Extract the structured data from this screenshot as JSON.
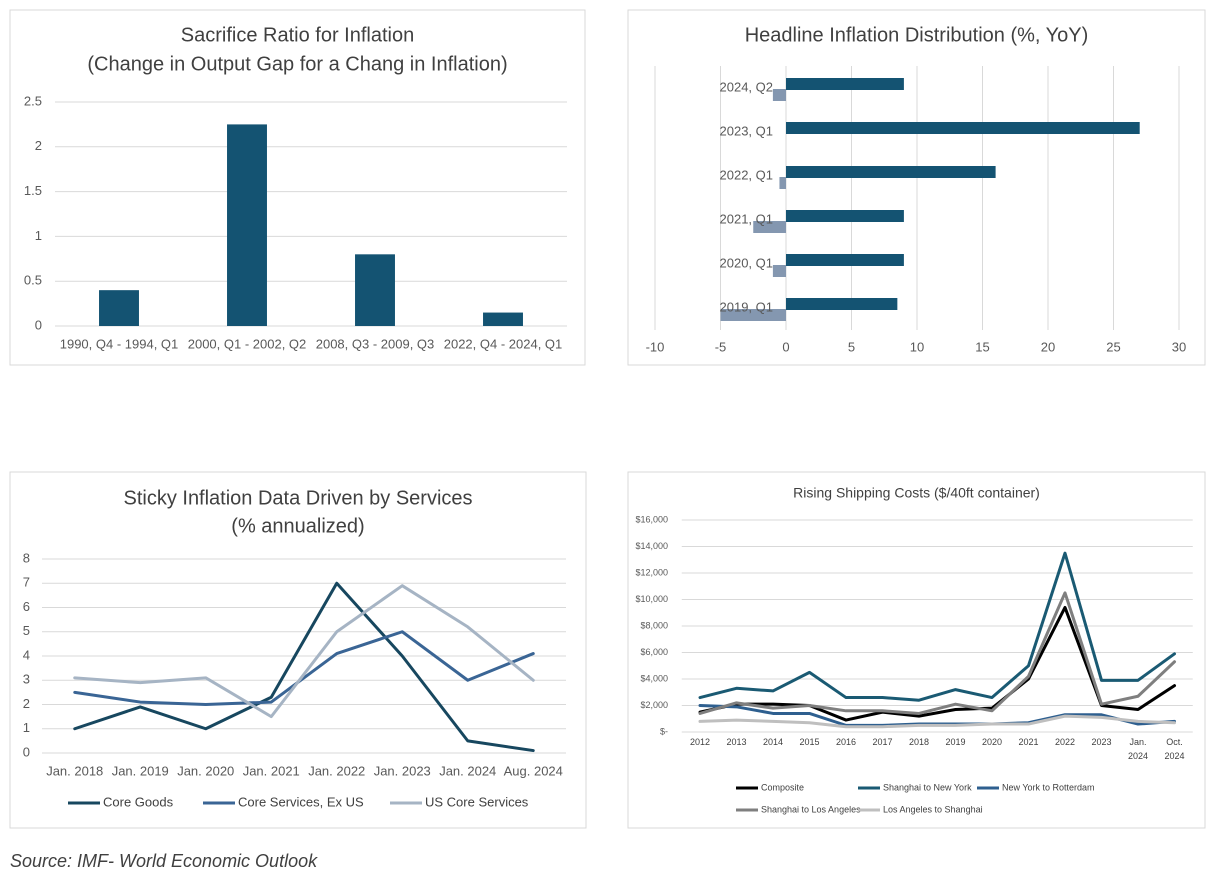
{
  "chart_data": [
    {
      "type": "bar",
      "orientation": "vertical",
      "title": "Sacrifice Ratio for Inflation",
      "subtitle": "(Change in Output Gap for a Chang in Inflation)",
      "categories": [
        "1990, Q4 - 1994, Q1",
        "2000, Q1 - 2002, Q2",
        "2008, Q3 - 2009, Q3",
        "2022, Q4 - 2024, Q1"
      ],
      "values": [
        0.4,
        2.25,
        0.8,
        0.15
      ],
      "color": "#145372",
      "ylim": [
        0,
        2.5
      ],
      "yticks": [
        0,
        0.5,
        1,
        1.5,
        2,
        2.5
      ],
      "grid": true
    },
    {
      "type": "bar",
      "orientation": "horizontal",
      "title": "Headline Inflation Distribution (%, YoY)",
      "categories": [
        "2024, Q2",
        "2023, Q1",
        "2022, Q1",
        "2021, Q1",
        "2020, Q1",
        "2019, Q1"
      ],
      "series": [
        {
          "color": "#145372",
          "values": [
            9,
            27,
            16,
            9,
            9,
            8.5
          ]
        },
        {
          "color": "#8497b0",
          "values": [
            -1,
            0,
            -0.5,
            -2.5,
            -1,
            -5
          ]
        }
      ],
      "xlim": [
        -10,
        30
      ],
      "xticks": [
        -10,
        -5,
        0,
        5,
        10,
        15,
        20,
        25,
        30
      ],
      "grid": true
    },
    {
      "type": "line",
      "title": "Sticky Inflation Data Driven by Services",
      "subtitle": "(% annualized)",
      "categories": [
        "Jan. 2018",
        "Jan. 2019",
        "Jan. 2020",
        "Jan. 2021",
        "Jan. 2022",
        "Jan. 2023",
        "Jan. 2024",
        "Aug. 2024"
      ],
      "series": [
        {
          "name": "Core Goods",
          "color": "#17475f",
          "values": [
            1,
            1.9,
            1,
            2.3,
            7,
            4,
            0.5,
            0.1
          ]
        },
        {
          "name": "Core Services, Ex US",
          "color": "#3a6595",
          "values": [
            2.5,
            2.1,
            2,
            2.1,
            4.1,
            5,
            3,
            4.1
          ]
        },
        {
          "name": "US Core Services",
          "color": "#a6b4c4",
          "values": [
            3.1,
            2.9,
            3.1,
            1.5,
            5,
            6.9,
            5.2,
            3
          ]
        }
      ],
      "ylim": [
        0,
        8
      ],
      "yticks": [
        0,
        1,
        2,
        3,
        4,
        5,
        6,
        7,
        8
      ],
      "grid": true,
      "legend": "bottom"
    },
    {
      "type": "line",
      "title": "Rising Shipping Costs ($/40ft container)",
      "categories": [
        "2012",
        "2013",
        "2014",
        "2015",
        "2016",
        "2017",
        "2018",
        "2019",
        "2020",
        "2021",
        "2022",
        "2023",
        "Jan. 2024",
        "Oct. 2024"
      ],
      "series": [
        {
          "name": "Composite",
          "color": "#000000",
          "values": [
            1500,
            2100,
            2100,
            2000,
            900,
            1500,
            1200,
            1700,
            1800,
            4000,
            9400,
            2000,
            1700,
            3500
          ]
        },
        {
          "name": "Shanghai to New York",
          "color": "#1a5a73",
          "values": [
            2600,
            3300,
            3100,
            4500,
            2600,
            2600,
            2400,
            3200,
            2600,
            5000,
            13500,
            3900,
            3900,
            5900
          ]
        },
        {
          "name": "New York to Rotterdam",
          "color": "#2e5f8f",
          "values": [
            2000,
            1900,
            1400,
            1400,
            500,
            500,
            600,
            600,
            600,
            700,
            1300,
            1300,
            600,
            800
          ]
        },
        {
          "name": "Shanghai to Los Angeles",
          "color": "#7f7f7f",
          "values": [
            1400,
            2200,
            1800,
            2000,
            1600,
            1600,
            1400,
            2100,
            1600,
            4200,
            10500,
            2100,
            2700,
            5300
          ]
        },
        {
          "name": "Los Angeles to Shanghai",
          "color": "#bfbfbf",
          "values": [
            800,
            900,
            800,
            700,
            400,
            400,
            500,
            500,
            600,
            600,
            1200,
            1100,
            800,
            700
          ]
        }
      ],
      "ylim": [
        0,
        16000
      ],
      "yticks": [
        {
          "value": 0,
          "label": "$-"
        },
        {
          "value": 2000,
          "label": "$2,000"
        },
        {
          "value": 4000,
          "label": "$4,000"
        },
        {
          "value": 6000,
          "label": "$6,000"
        },
        {
          "value": 8000,
          "label": "$8,000"
        },
        {
          "value": 10000,
          "label": "$10,000"
        },
        {
          "value": 12000,
          "label": "$12,000"
        },
        {
          "value": 14000,
          "label": "$14,000"
        },
        {
          "value": 16000,
          "label": "$16,000"
        }
      ],
      "grid": true,
      "legend": "bottom"
    }
  ],
  "source": "Source: IMF- World Economic Outlook"
}
